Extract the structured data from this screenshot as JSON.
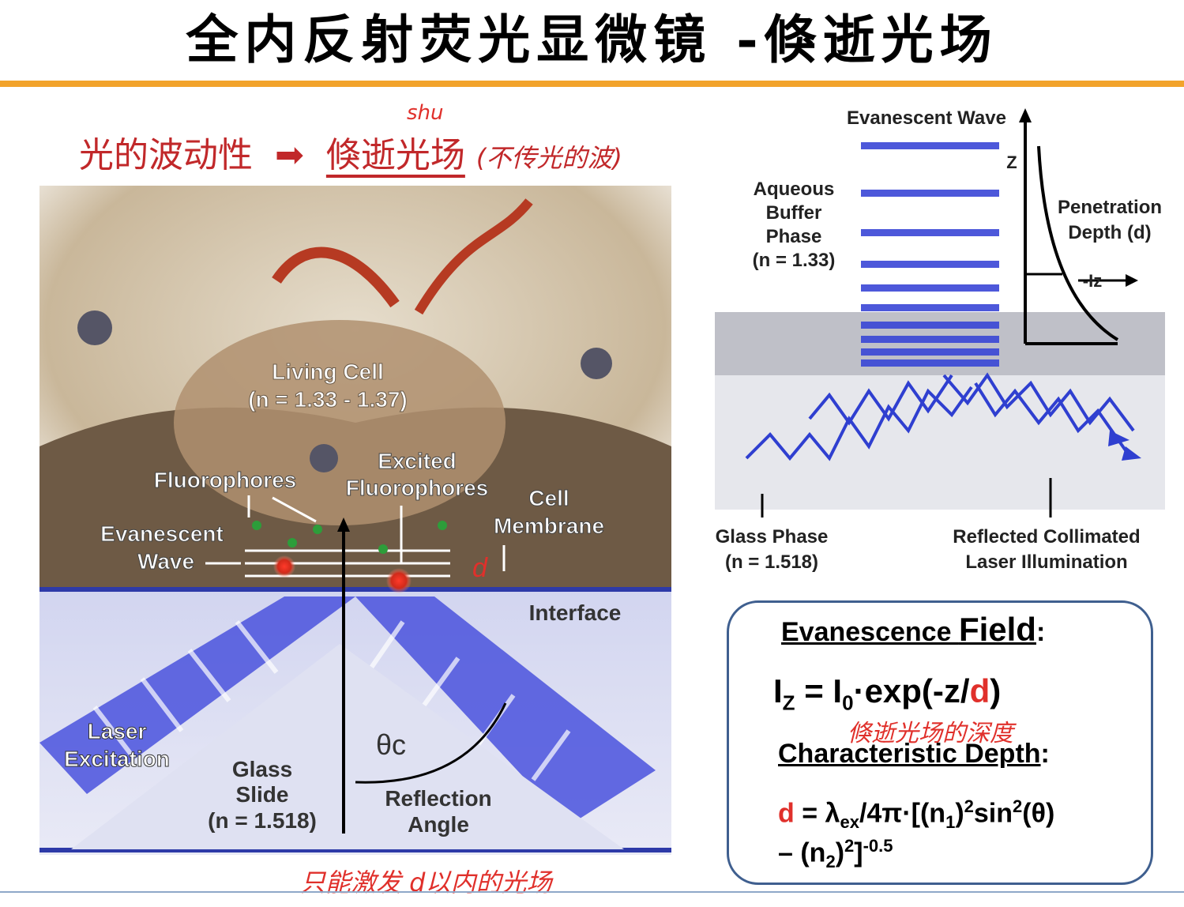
{
  "slide": {
    "title": "全内反射荧光显微镜 -倏逝光场",
    "subtitle_left": "光的波动性",
    "subtitle_arrow": "➡",
    "subtitle_right": "倏逝光场",
    "subtitle_note": "(不传光的波)",
    "pinyin_note": "shu",
    "bottom_note": "只能激发 d以内的光场"
  },
  "left_diagram": {
    "living_cell": "Living Cell",
    "living_cell_n": "(n = 1.33 - 1.37)",
    "fluorophores": "Fluorophores",
    "excited": "Excited",
    "excited_fluorophores": "Fluorophores",
    "cell": "Cell",
    "membrane": "Membrane",
    "evanescent": "Evanescent",
    "wave": "Wave",
    "d_mark": "d",
    "interface": "Interface",
    "laser": "Laser",
    "excitation": "Excitation",
    "theta": "θc",
    "glass": "Glass",
    "slide": "Slide",
    "glass_n": "(n = 1.518)",
    "reflection": "Reflection",
    "angle": "Angle"
  },
  "right_diagram": {
    "evanescent_wave": "Evanescent Wave",
    "aqueous": "Aqueous",
    "buffer": "Buffer",
    "phase": "Phase",
    "aqueous_n": "(n = 1.33)",
    "z_label": "Z",
    "penetration": "Penetration",
    "depth": "Depth (d)",
    "iz": "-Iz",
    "glass_phase": "Glass Phase",
    "glass_phase_n": "(n = 1.518)",
    "reflected": "Reflected Collimated",
    "laser_illum": "Laser Illumination"
  },
  "formula": {
    "heading_a": "Evanescence ",
    "heading_b": "Field",
    "heading_colon": ":",
    "eq1": "IZ = I0·exp(-z/d)",
    "eq1_note": "倏逝光场的深度",
    "char_depth": "Characteristic Depth",
    "char_colon": ":",
    "eq2_line1": "d = λex/4π·[(n1)²sin²(θ)",
    "eq2_line2": "– (n2)²]-0.5"
  },
  "colors": {
    "accent": "#f2a32b",
    "red": "#c1282a",
    "wave_blue": "#3a47d6",
    "box_border": "#3f5f8f"
  }
}
